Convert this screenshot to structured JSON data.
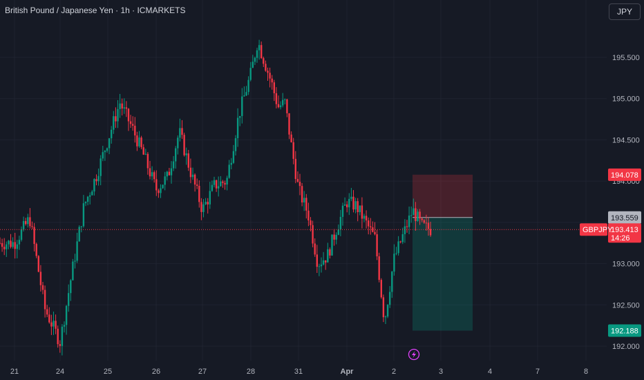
{
  "header": {
    "title": "British Pound / Japanese Yen · 1h · ICMARKETS",
    "currency_button": "JPY"
  },
  "colors": {
    "background": "#161a25",
    "up": "#089981",
    "down": "#f23645",
    "grid": "#1f2330",
    "current_line": "#f23645",
    "stop_zone": "#f23645",
    "target_zone": "#089981"
  },
  "chart_data": {
    "type": "candlestick",
    "symbol": "GBPJPY",
    "timeframe": "1h",
    "x_tick_labels": [
      "21",
      "24",
      "25",
      "26",
      "27",
      "28",
      "31",
      "Apr",
      "2",
      "3",
      "4",
      "7",
      "8"
    ],
    "y_tick_labels": [
      "192.000",
      "192.500",
      "193.000",
      "193.500",
      "194.000",
      "194.500",
      "195.000",
      "195.500"
    ],
    "ylim": [
      191.9,
      196.0
    ],
    "grid": true,
    "current_price": 193.413,
    "current_symbol_label": "GBPJPY",
    "countdown": "14:26",
    "price_tags": [
      {
        "value": 194.078,
        "label": "194.078",
        "kind": "stop"
      },
      {
        "value": 193.559,
        "label": "193.559",
        "kind": "entry"
      },
      {
        "value": 192.188,
        "label": "192.188",
        "kind": "target"
      }
    ],
    "position": {
      "type": "short",
      "entry": 193.559,
      "stop": 194.078,
      "target": 192.188
    },
    "key_points": [
      {
        "x": "21",
        "price": 193.25
      },
      {
        "x": "21",
        "price": 193.55
      },
      {
        "x": "21",
        "price": 192.45
      },
      {
        "x": "24",
        "price": 192.05
      },
      {
        "x": "24",
        "price": 192.9
      },
      {
        "x": "24",
        "price": 193.7
      },
      {
        "x": "24",
        "price": 194.05
      },
      {
        "x": "25",
        "price": 194.5
      },
      {
        "x": "25",
        "price": 194.95
      },
      {
        "x": "25",
        "price": 194.65
      },
      {
        "x": "25",
        "price": 194.3
      },
      {
        "x": "26",
        "price": 193.9
      },
      {
        "x": "26",
        "price": 194.05
      },
      {
        "x": "26",
        "price": 194.6
      },
      {
        "x": "26",
        "price": 194.1
      },
      {
        "x": "27",
        "price": 193.65
      },
      {
        "x": "27",
        "price": 193.95
      },
      {
        "x": "27",
        "price": 194.0
      },
      {
        "x": "27",
        "price": 194.8
      },
      {
        "x": "28",
        "price": 195.3
      },
      {
        "x": "28",
        "price": 195.7
      },
      {
        "x": "28",
        "price": 195.45
      },
      {
        "x": "28",
        "price": 195.2
      },
      {
        "x": "28",
        "price": 194.9
      },
      {
        "x": "28",
        "price": 194.95
      },
      {
        "x": "28",
        "price": 194.4
      },
      {
        "x": "31",
        "price": 193.9
      },
      {
        "x": "31",
        "price": 193.6
      },
      {
        "x": "31",
        "price": 193.0
      },
      {
        "x": "31",
        "price": 193.1
      },
      {
        "x": "31",
        "price": 193.45
      },
      {
        "x": "Apr",
        "price": 193.75
      },
      {
        "x": "Apr",
        "price": 193.7
      },
      {
        "x": "Apr",
        "price": 193.5
      },
      {
        "x": "Apr",
        "price": 193.3
      },
      {
        "x": "Apr",
        "price": 192.3
      },
      {
        "x": "2",
        "price": 193.05
      },
      {
        "x": "2",
        "price": 193.35
      },
      {
        "x": "2",
        "price": 193.65
      },
      {
        "x": "2",
        "price": 193.45
      },
      {
        "x": "2",
        "price": 193.413
      }
    ]
  }
}
